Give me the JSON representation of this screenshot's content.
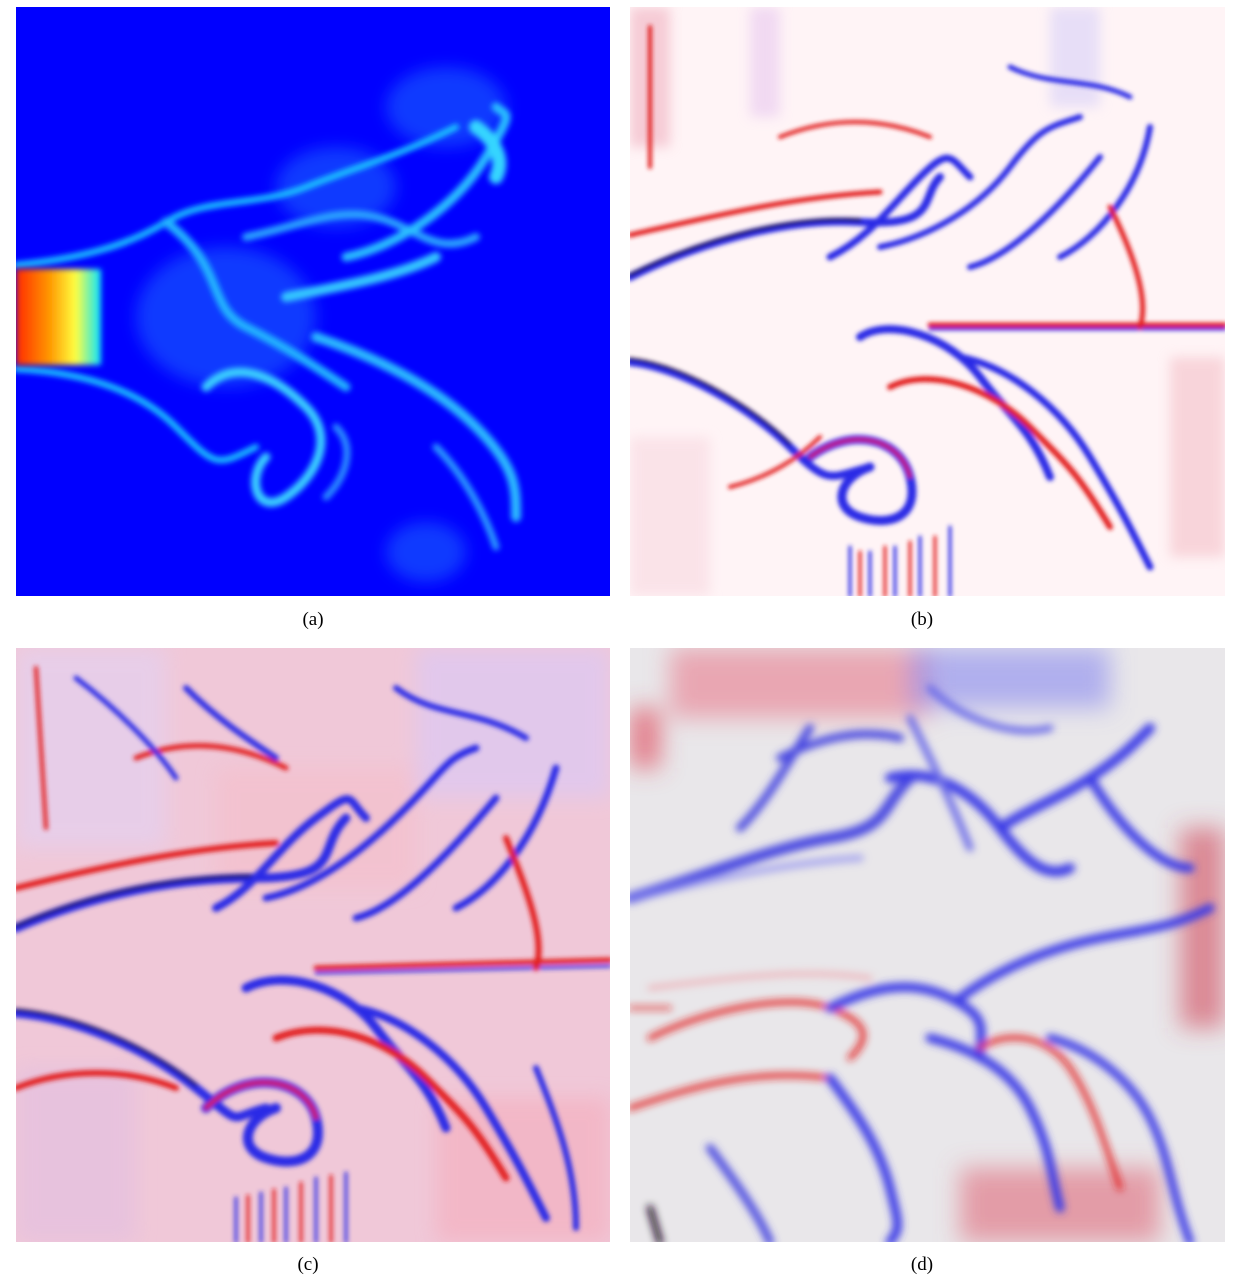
{
  "figure": {
    "panels": [
      {
        "id": "a",
        "caption": "(a)",
        "colormap": "jet",
        "background": "#0000ff"
      },
      {
        "id": "b",
        "caption": "(b)",
        "colormap": "bwr",
        "background": "#fff4f6"
      },
      {
        "id": "c",
        "caption": "(c)",
        "colormap": "bwr",
        "background": "#f0c8d8"
      },
      {
        "id": "d",
        "caption": "(d)",
        "colormap": "bwr",
        "background": "#e9e7ea"
      }
    ]
  },
  "colors": {
    "jet_low": "#0000ff",
    "jet_mid": "#00e5ff",
    "jet_high": "#ff2000",
    "positive": "#e21a1a",
    "negative": "#2a2ae6",
    "extreme": "#1a0a20"
  }
}
